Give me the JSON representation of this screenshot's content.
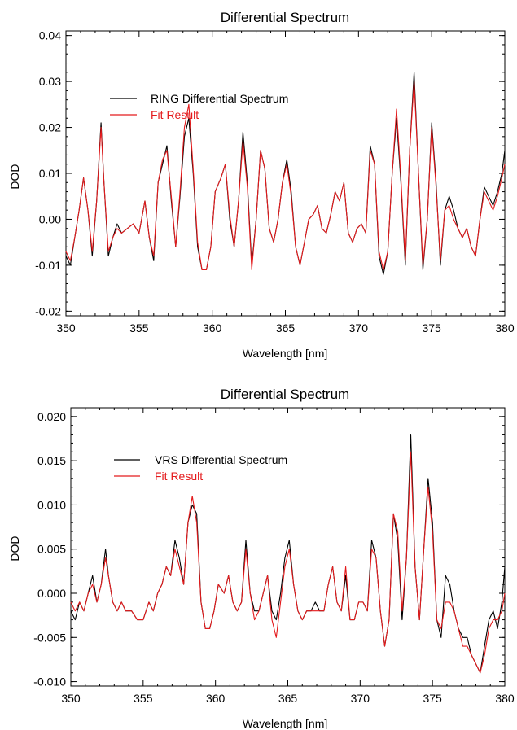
{
  "colors": {
    "measured": "#000000",
    "fit": "#e41a1c",
    "axis": "#000000",
    "background": "#ffffff"
  },
  "chart_data": [
    {
      "type": "line",
      "title": "Differential Spectrum",
      "xlabel": "Wavelength [nm]",
      "ylabel": "DOD",
      "xlim": [
        350,
        380
      ],
      "ylim": [
        -0.021,
        0.041
      ],
      "xticks": [
        350,
        355,
        360,
        365,
        370,
        375,
        380
      ],
      "xtick_labels": [
        "350",
        "355",
        "360",
        "365",
        "370",
        "375",
        "380"
      ],
      "yticks": [
        -0.02,
        -0.01,
        0.0,
        0.01,
        0.02,
        0.03,
        0.04
      ],
      "ytick_labels": [
        "-0.02",
        "-0.01",
        "0.00",
        "0.01",
        "0.02",
        "0.03",
        "0.04"
      ],
      "grid": false,
      "legend": "upper-left",
      "series": [
        {
          "name": "RING Differential Spectrum",
          "color": "#000000",
          "x": [
            350.0,
            350.3,
            350.6,
            350.9,
            351.2,
            351.5,
            351.8,
            352.1,
            352.4,
            352.6,
            352.9,
            353.2,
            353.5,
            353.8,
            354.2,
            354.6,
            355.0,
            355.4,
            355.7,
            356.0,
            356.3,
            356.6,
            356.9,
            357.2,
            357.5,
            357.8,
            358.1,
            358.4,
            358.7,
            359.0,
            359.3,
            359.6,
            359.9,
            360.2,
            360.6,
            360.9,
            361.2,
            361.5,
            361.8,
            362.1,
            362.4,
            362.7,
            363.0,
            363.3,
            363.6,
            363.9,
            364.2,
            364.5,
            364.8,
            365.1,
            365.4,
            365.7,
            366.0,
            366.3,
            366.6,
            366.9,
            367.2,
            367.5,
            367.8,
            368.1,
            368.4,
            368.7,
            369.0,
            369.3,
            369.6,
            369.9,
            370.2,
            370.5,
            370.8,
            371.1,
            371.4,
            371.7,
            372.0,
            372.3,
            372.6,
            372.9,
            373.2,
            373.5,
            373.8,
            374.1,
            374.4,
            374.7,
            375.0,
            375.3,
            375.6,
            375.9,
            376.2,
            376.5,
            376.8,
            377.1,
            377.4,
            377.7,
            378.0,
            378.3,
            378.6,
            378.9,
            379.2,
            379.5,
            379.8,
            380.0
          ],
          "y": [
            -0.008,
            -0.01,
            -0.004,
            0.002,
            0.009,
            0.002,
            -0.008,
            0.004,
            0.021,
            0.008,
            -0.008,
            -0.004,
            -0.001,
            -0.003,
            -0.002,
            -0.001,
            -0.003,
            0.004,
            -0.004,
            -0.009,
            0.008,
            0.012,
            0.016,
            0.004,
            -0.006,
            0.005,
            0.018,
            0.022,
            0.01,
            -0.006,
            -0.011,
            -0.011,
            -0.006,
            0.006,
            0.009,
            0.012,
            0.0,
            -0.006,
            0.004,
            0.019,
            0.008,
            -0.01,
            0.0,
            0.015,
            0.011,
            -0.002,
            -0.005,
            0.0,
            0.008,
            0.013,
            0.006,
            -0.006,
            -0.01,
            -0.005,
            0.0,
            0.001,
            0.003,
            -0.002,
            -0.003,
            0.001,
            0.006,
            0.004,
            0.008,
            -0.003,
            -0.005,
            -0.002,
            -0.001,
            -0.003,
            0.016,
            0.012,
            -0.008,
            -0.012,
            -0.007,
            0.01,
            0.022,
            0.008,
            -0.01,
            0.015,
            0.032,
            0.01,
            -0.011,
            0.0,
            0.021,
            0.008,
            -0.01,
            0.002,
            0.005,
            0.002,
            -0.002,
            -0.004,
            -0.002,
            -0.006,
            -0.008,
            0.0,
            0.007,
            0.005,
            0.003,
            0.006,
            0.01,
            0.015
          ]
        },
        {
          "name": "Fit Result",
          "color": "#e41a1c",
          "x": [
            350.0,
            350.3,
            350.6,
            350.9,
            351.2,
            351.5,
            351.8,
            352.1,
            352.4,
            352.6,
            352.9,
            353.2,
            353.5,
            353.8,
            354.2,
            354.6,
            355.0,
            355.4,
            355.7,
            356.0,
            356.3,
            356.6,
            356.9,
            357.2,
            357.5,
            357.8,
            358.1,
            358.4,
            358.7,
            359.0,
            359.3,
            359.6,
            359.9,
            360.2,
            360.6,
            360.9,
            361.2,
            361.5,
            361.8,
            362.1,
            362.4,
            362.7,
            363.0,
            363.3,
            363.6,
            363.9,
            364.2,
            364.5,
            364.8,
            365.1,
            365.4,
            365.7,
            366.0,
            366.3,
            366.6,
            366.9,
            367.2,
            367.5,
            367.8,
            368.1,
            368.4,
            368.7,
            369.0,
            369.3,
            369.6,
            369.9,
            370.2,
            370.5,
            370.8,
            371.1,
            371.4,
            371.7,
            372.0,
            372.3,
            372.6,
            372.9,
            373.2,
            373.5,
            373.8,
            374.1,
            374.4,
            374.7,
            375.0,
            375.3,
            375.6,
            375.9,
            376.2,
            376.5,
            376.8,
            377.1,
            377.4,
            377.7,
            378.0,
            378.3,
            378.6,
            378.9,
            379.2,
            379.5,
            379.8,
            380.0
          ],
          "y": [
            -0.007,
            -0.009,
            -0.004,
            0.002,
            0.009,
            0.002,
            -0.007,
            0.004,
            0.02,
            0.008,
            -0.007,
            -0.004,
            -0.002,
            -0.003,
            -0.002,
            -0.001,
            -0.003,
            0.004,
            -0.004,
            -0.008,
            0.008,
            0.013,
            0.015,
            0.005,
            -0.006,
            0.006,
            0.02,
            0.025,
            0.011,
            -0.005,
            -0.011,
            -0.011,
            -0.006,
            0.006,
            0.009,
            0.012,
            0.001,
            -0.006,
            0.004,
            0.017,
            0.007,
            -0.011,
            0.0,
            0.015,
            0.011,
            -0.002,
            -0.005,
            0.0,
            0.008,
            0.012,
            0.005,
            -0.006,
            -0.01,
            -0.005,
            0.0,
            0.001,
            0.003,
            -0.002,
            -0.003,
            0.001,
            0.006,
            0.004,
            0.008,
            -0.003,
            -0.005,
            -0.002,
            -0.001,
            -0.003,
            0.015,
            0.012,
            -0.007,
            -0.011,
            -0.007,
            0.01,
            0.024,
            0.009,
            -0.009,
            0.015,
            0.03,
            0.01,
            -0.01,
            0.0,
            0.02,
            0.007,
            -0.009,
            0.002,
            0.003,
            0.0,
            -0.002,
            -0.004,
            -0.002,
            -0.006,
            -0.008,
            0.0,
            0.006,
            0.004,
            0.002,
            0.005,
            0.009,
            0.012
          ]
        }
      ]
    },
    {
      "type": "line",
      "title": "Differential Spectrum",
      "xlabel": "Wavelength [nm]",
      "ylabel": "DOD",
      "xlim": [
        350,
        380
      ],
      "ylim": [
        -0.0105,
        0.021
      ],
      "xticks": [
        350,
        355,
        360,
        365,
        370,
        375,
        380
      ],
      "xtick_labels": [
        "350",
        "355",
        "360",
        "365",
        "370",
        "375",
        "380"
      ],
      "yticks": [
        -0.01,
        -0.005,
        0.0,
        0.005,
        0.01,
        0.015,
        0.02
      ],
      "ytick_labels": [
        "-0.010",
        "-0.005",
        "0.000",
        "0.005",
        "0.010",
        "0.015",
        "0.020"
      ],
      "grid": false,
      "legend": "upper-left",
      "series": [
        {
          "name": "VRS Differential Spectrum",
          "color": "#000000",
          "x": [
            350.0,
            350.3,
            350.6,
            350.9,
            351.2,
            351.5,
            351.8,
            352.1,
            352.4,
            352.6,
            352.9,
            353.2,
            353.5,
            353.8,
            354.2,
            354.6,
            355.0,
            355.4,
            355.7,
            356.0,
            356.3,
            356.6,
            356.9,
            357.2,
            357.5,
            357.8,
            358.1,
            358.4,
            358.7,
            359.0,
            359.3,
            359.6,
            359.9,
            360.2,
            360.6,
            360.9,
            361.2,
            361.5,
            361.8,
            362.1,
            362.4,
            362.7,
            363.0,
            363.3,
            363.6,
            363.9,
            364.2,
            364.5,
            364.8,
            365.1,
            365.4,
            365.7,
            366.0,
            366.3,
            366.6,
            366.9,
            367.2,
            367.5,
            367.8,
            368.1,
            368.4,
            368.7,
            369.0,
            369.3,
            369.6,
            369.9,
            370.2,
            370.5,
            370.8,
            371.1,
            371.4,
            371.7,
            372.0,
            372.3,
            372.6,
            372.9,
            373.2,
            373.5,
            373.8,
            374.1,
            374.4,
            374.7,
            375.0,
            375.3,
            375.6,
            375.9,
            376.2,
            376.5,
            376.8,
            377.1,
            377.4,
            377.7,
            378.0,
            378.3,
            378.6,
            378.9,
            379.2,
            379.5,
            379.8,
            380.0
          ],
          "y": [
            -0.002,
            -0.003,
            -0.001,
            -0.002,
            0.0,
            0.002,
            -0.001,
            0.001,
            0.005,
            0.002,
            -0.001,
            -0.002,
            -0.001,
            -0.002,
            -0.002,
            -0.003,
            -0.003,
            -0.001,
            -0.002,
            0.0,
            0.001,
            0.003,
            0.002,
            0.006,
            0.004,
            0.001,
            0.008,
            0.01,
            0.009,
            -0.001,
            -0.004,
            -0.004,
            -0.002,
            0.001,
            0.0,
            0.002,
            -0.001,
            -0.002,
            -0.001,
            0.006,
            0.0,
            -0.002,
            -0.002,
            0.0,
            0.002,
            -0.002,
            -0.003,
            0.0,
            0.004,
            0.006,
            0.001,
            -0.002,
            -0.003,
            -0.002,
            -0.002,
            -0.001,
            -0.002,
            -0.002,
            0.001,
            0.003,
            -0.001,
            -0.002,
            0.002,
            -0.003,
            -0.003,
            -0.001,
            -0.001,
            -0.002,
            0.006,
            0.004,
            -0.002,
            -0.006,
            -0.003,
            0.009,
            0.006,
            -0.003,
            0.004,
            0.018,
            0.003,
            -0.003,
            0.005,
            0.013,
            0.008,
            -0.003,
            -0.005,
            0.002,
            0.001,
            -0.002,
            -0.004,
            -0.005,
            -0.005,
            -0.007,
            -0.008,
            -0.009,
            -0.006,
            -0.003,
            -0.002,
            -0.004,
            -0.001,
            0.003
          ]
        },
        {
          "name": "Fit Result",
          "color": "#e41a1c",
          "x": [
            350.0,
            350.3,
            350.6,
            350.9,
            351.2,
            351.5,
            351.8,
            352.1,
            352.4,
            352.6,
            352.9,
            353.2,
            353.5,
            353.8,
            354.2,
            354.6,
            355.0,
            355.4,
            355.7,
            356.0,
            356.3,
            356.6,
            356.9,
            357.2,
            357.5,
            357.8,
            358.1,
            358.4,
            358.7,
            359.0,
            359.3,
            359.6,
            359.9,
            360.2,
            360.6,
            360.9,
            361.2,
            361.5,
            361.8,
            362.1,
            362.4,
            362.7,
            363.0,
            363.3,
            363.6,
            363.9,
            364.2,
            364.5,
            364.8,
            365.1,
            365.4,
            365.7,
            366.0,
            366.3,
            366.6,
            366.9,
            367.2,
            367.5,
            367.8,
            368.1,
            368.4,
            368.7,
            369.0,
            369.3,
            369.6,
            369.9,
            370.2,
            370.5,
            370.8,
            371.1,
            371.4,
            371.7,
            372.0,
            372.3,
            372.6,
            372.9,
            373.2,
            373.5,
            373.8,
            374.1,
            374.4,
            374.7,
            375.0,
            375.3,
            375.6,
            375.9,
            376.2,
            376.5,
            376.8,
            377.1,
            377.4,
            377.7,
            378.0,
            378.3,
            378.6,
            378.9,
            379.2,
            379.5,
            379.8,
            380.0
          ],
          "y": [
            -0.001,
            -0.002,
            -0.001,
            -0.002,
            0.0,
            0.001,
            -0.001,
            0.001,
            0.004,
            0.002,
            -0.001,
            -0.002,
            -0.001,
            -0.002,
            -0.002,
            -0.003,
            -0.003,
            -0.001,
            -0.002,
            0.0,
            0.001,
            0.003,
            0.002,
            0.005,
            0.003,
            0.001,
            0.008,
            0.011,
            0.008,
            -0.001,
            -0.004,
            -0.004,
            -0.002,
            0.001,
            0.0,
            0.002,
            -0.001,
            -0.002,
            -0.001,
            0.005,
            0.0,
            -0.003,
            -0.002,
            0.0,
            0.002,
            -0.003,
            -0.005,
            -0.001,
            0.003,
            0.005,
            0.001,
            -0.002,
            -0.003,
            -0.002,
            -0.002,
            -0.002,
            -0.002,
            -0.002,
            0.001,
            0.003,
            -0.001,
            -0.002,
            0.003,
            -0.003,
            -0.003,
            -0.001,
            -0.001,
            -0.002,
            0.005,
            0.004,
            -0.002,
            -0.006,
            -0.003,
            0.009,
            0.007,
            -0.002,
            0.004,
            0.016,
            0.003,
            -0.003,
            0.005,
            0.012,
            0.007,
            -0.003,
            -0.004,
            -0.001,
            -0.001,
            -0.002,
            -0.004,
            -0.006,
            -0.006,
            -0.007,
            -0.008,
            -0.009,
            -0.007,
            -0.004,
            -0.003,
            -0.003,
            -0.002,
            0.0
          ]
        }
      ]
    }
  ]
}
